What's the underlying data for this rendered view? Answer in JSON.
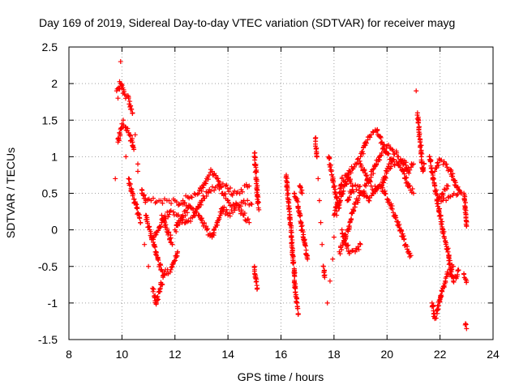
{
  "chart_data": {
    "type": "scatter",
    "title": "Day 169 of 2019, Sidereal Day-to-day VTEC variation (SDTVAR) for receiver mayg",
    "xlabel": "GPS time / hours",
    "ylabel": "SDTVAR / TECUs",
    "xlim": [
      8,
      24
    ],
    "ylim": [
      -1.5,
      2.5
    ],
    "xticks": [
      8,
      10,
      12,
      14,
      16,
      18,
      20,
      22,
      24
    ],
    "yticks": [
      -1.5,
      -1,
      -0.5,
      0,
      0.5,
      1,
      1.5,
      2,
      2.5
    ],
    "grid": true,
    "marker": "+",
    "color": "#ff0000",
    "series": [
      {
        "name": "mayg",
        "tracks": [
          [
            [
              9.75,
              0.7
            ],
            [
              9.85,
              1.8
            ],
            [
              9.95,
              2.3
            ],
            [
              10.05,
              1.5
            ],
            [
              10.15,
              1.0
            ],
            [
              10.25,
              0.7
            ],
            [
              10.4,
              0.5
            ],
            [
              10.55,
              0.3
            ],
            [
              10.7,
              0.1
            ],
            [
              10.85,
              -0.2
            ],
            [
              11.0,
              -0.5
            ],
            [
              11.15,
              -0.8
            ],
            [
              11.3,
              -1.0
            ],
            [
              11.45,
              -0.8
            ],
            [
              11.6,
              -0.6
            ]
          ],
          [
            [
              9.8,
              1.9
            ],
            [
              9.95,
              2.0
            ],
            [
              10.1,
              1.85
            ],
            [
              10.25,
              1.8
            ],
            [
              10.4,
              1.6
            ],
            [
              10.5,
              1.3
            ],
            [
              10.6,
              0.9
            ],
            [
              10.75,
              0.55
            ],
            [
              10.9,
              0.4
            ],
            [
              11.1,
              0.4
            ],
            [
              11.4,
              0.4
            ],
            [
              11.7,
              0.4
            ],
            [
              12.0,
              0.4
            ],
            [
              12.3,
              0.35
            ],
            [
              12.6,
              0.3
            ]
          ],
          [
            [
              9.85,
              1.2
            ],
            [
              10.0,
              1.45
            ],
            [
              10.15,
              1.4
            ],
            [
              10.3,
              1.3
            ],
            [
              10.45,
              1.1
            ],
            [
              10.6,
              0.8
            ],
            [
              10.75,
              0.5
            ],
            [
              10.9,
              0.2
            ],
            [
              11.05,
              0.0
            ],
            [
              11.2,
              -0.2
            ],
            [
              11.35,
              -0.4
            ],
            [
              11.5,
              -0.55
            ],
            [
              11.7,
              -0.6
            ],
            [
              11.9,
              -0.5
            ],
            [
              12.1,
              -0.3
            ]
          ],
          [
            [
              11.5,
              0.2
            ],
            [
              11.7,
              0.0
            ],
            [
              11.9,
              -0.2
            ],
            [
              12.1,
              0.1
            ],
            [
              12.3,
              0.4
            ],
            [
              12.6,
              0.45
            ],
            [
              12.9,
              0.5
            ],
            [
              13.2,
              0.7
            ],
            [
              13.4,
              0.8
            ],
            [
              13.6,
              0.7
            ],
            [
              13.8,
              0.5
            ],
            [
              14.0,
              0.4
            ],
            [
              14.2,
              0.35
            ],
            [
              14.4,
              0.3
            ],
            [
              14.6,
              0.2
            ],
            [
              14.8,
              0.1
            ]
          ],
          [
            [
              11.2,
              -0.1
            ],
            [
              11.5,
              0.1
            ],
            [
              11.8,
              0.25
            ],
            [
              12.1,
              0.2
            ],
            [
              12.4,
              0.1
            ],
            [
              12.7,
              0.2
            ],
            [
              13.0,
              0.4
            ],
            [
              13.3,
              0.55
            ],
            [
              13.6,
              0.6
            ],
            [
              13.9,
              0.6
            ],
            [
              14.2,
              0.5
            ],
            [
              14.5,
              0.55
            ],
            [
              14.8,
              0.6
            ]
          ],
          [
            [
              12.0,
              0.0
            ],
            [
              12.3,
              0.2
            ],
            [
              12.6,
              0.3
            ],
            [
              12.9,
              0.2
            ],
            [
              13.2,
              0.0
            ],
            [
              13.4,
              -0.1
            ],
            [
              13.6,
              0.1
            ],
            [
              13.8,
              0.3
            ],
            [
              14.0,
              0.2
            ],
            [
              14.3,
              0.3
            ],
            [
              14.6,
              0.4
            ],
            [
              14.9,
              0.35
            ]
          ],
          [
            [
              15.0,
              1.05
            ],
            [
              15.05,
              0.8
            ],
            [
              15.1,
              0.55
            ],
            [
              15.15,
              0.3
            ],
            [
              15.0,
              -0.5
            ],
            [
              15.05,
              -0.65
            ],
            [
              15.1,
              -0.8
            ]
          ],
          [
            [
              16.2,
              0.75
            ],
            [
              16.25,
              0.5
            ],
            [
              16.3,
              0.3
            ],
            [
              16.35,
              0.1
            ],
            [
              16.4,
              -0.1
            ],
            [
              16.45,
              -0.35
            ],
            [
              16.5,
              -0.6
            ],
            [
              16.55,
              -0.85
            ],
            [
              16.6,
              -1.0
            ],
            [
              16.65,
              -1.15
            ]
          ],
          [
            [
              16.5,
              0.5
            ],
            [
              16.6,
              0.4
            ],
            [
              16.7,
              0.2
            ],
            [
              16.8,
              0.0
            ],
            [
              16.9,
              -0.2
            ],
            [
              17.0,
              -0.4
            ],
            [
              16.8,
              0.5
            ],
            [
              16.7,
              0.6
            ]
          ],
          [
            [
              17.3,
              1.25
            ],
            [
              17.35,
              1.0
            ],
            [
              17.4,
              0.7
            ],
            [
              17.45,
              0.4
            ],
            [
              17.5,
              0.1
            ],
            [
              17.55,
              -0.2
            ],
            [
              17.6,
              -0.5
            ],
            [
              17.65,
              -0.65
            ]
          ],
          [
            [
              17.75,
              -1.0
            ],
            [
              17.85,
              -0.7
            ],
            [
              17.95,
              -0.4
            ],
            [
              18.0,
              -0.1
            ],
            [
              18.1,
              0.2
            ],
            [
              18.2,
              0.5
            ],
            [
              18.3,
              0.7
            ],
            [
              18.5,
              0.75
            ],
            [
              18.7,
              0.6
            ]
          ],
          [
            [
              17.8,
              1.0
            ],
            [
              17.9,
              0.8
            ],
            [
              18.0,
              0.6
            ],
            [
              18.1,
              0.45
            ],
            [
              18.2,
              0.3
            ],
            [
              18.3,
              0.0
            ],
            [
              18.45,
              -0.2
            ],
            [
              18.6,
              -0.3
            ],
            [
              18.8,
              -0.3
            ],
            [
              19.0,
              -0.2
            ]
          ],
          [
            [
              18.0,
              0.2
            ],
            [
              18.2,
              0.4
            ],
            [
              18.4,
              0.6
            ],
            [
              18.6,
              0.8
            ],
            [
              18.8,
              0.9
            ],
            [
              19.0,
              1.0
            ],
            [
              19.2,
              1.2
            ],
            [
              19.4,
              1.3
            ],
            [
              19.6,
              1.35
            ],
            [
              19.8,
              1.2
            ],
            [
              20.0,
              1.05
            ],
            [
              20.2,
              0.95
            ],
            [
              20.4,
              0.9
            ],
            [
              20.6,
              0.95
            ],
            [
              20.8,
              0.85
            ]
          ],
          [
            [
              18.2,
              -0.3
            ],
            [
              18.4,
              -0.15
            ],
            [
              18.6,
              0.1
            ],
            [
              18.8,
              0.35
            ],
            [
              19.0,
              0.5
            ],
            [
              19.2,
              0.6
            ],
            [
              19.4,
              0.75
            ],
            [
              19.6,
              0.9
            ],
            [
              19.8,
              1.05
            ],
            [
              20.0,
              1.15
            ],
            [
              20.2,
              1.1
            ],
            [
              20.4,
              1.0
            ],
            [
              20.6,
              0.9
            ],
            [
              20.8,
              0.8
            ],
            [
              21.0,
              0.9
            ]
          ],
          [
            [
              18.5,
              0.4
            ],
            [
              18.7,
              0.55
            ],
            [
              18.9,
              0.6
            ],
            [
              19.1,
              0.5
            ],
            [
              19.3,
              0.4
            ],
            [
              19.5,
              0.5
            ],
            [
              19.7,
              0.6
            ],
            [
              19.9,
              0.5
            ],
            [
              20.1,
              0.35
            ],
            [
              20.3,
              0.2
            ],
            [
              20.5,
              0.0
            ],
            [
              20.7,
              -0.2
            ],
            [
              20.9,
              -0.35
            ]
          ],
          [
            [
              19.0,
              0.9
            ],
            [
              19.2,
              0.75
            ],
            [
              19.4,
              0.6
            ],
            [
              19.6,
              0.55
            ],
            [
              19.8,
              0.6
            ],
            [
              20.0,
              0.8
            ],
            [
              20.2,
              0.95
            ],
            [
              20.4,
              0.9
            ],
            [
              20.6,
              0.8
            ],
            [
              20.8,
              0.6
            ],
            [
              21.0,
              0.5
            ]
          ],
          [
            [
              21.1,
              1.9
            ],
            [
              21.15,
              1.6
            ],
            [
              21.2,
              1.4
            ],
            [
              21.25,
              1.2
            ],
            [
              21.3,
              1.0
            ],
            [
              21.35,
              0.8
            ],
            [
              21.4,
              0.9
            ]
          ],
          [
            [
              21.6,
              1.0
            ],
            [
              21.7,
              0.8
            ],
            [
              21.8,
              0.6
            ],
            [
              21.9,
              0.4
            ],
            [
              22.0,
              0.2
            ],
            [
              22.1,
              0.0
            ],
            [
              22.2,
              -0.15
            ],
            [
              22.3,
              -0.3
            ],
            [
              22.4,
              -0.55
            ],
            [
              22.5,
              -0.7
            ],
            [
              22.6,
              -0.65
            ],
            [
              22.7,
              -0.55
            ]
          ],
          [
            [
              21.7,
              -1.0
            ],
            [
              21.8,
              -1.2
            ],
            [
              21.9,
              -1.1
            ],
            [
              22.0,
              -0.95
            ],
            [
              22.1,
              -0.8
            ],
            [
              22.2,
              -0.7
            ],
            [
              22.3,
              -0.6
            ],
            [
              22.4,
              -0.55
            ],
            [
              22.5,
              -0.5
            ]
          ],
          [
            [
              21.8,
              0.8
            ],
            [
              22.0,
              0.95
            ],
            [
              22.2,
              0.9
            ],
            [
              22.4,
              0.8
            ],
            [
              22.6,
              0.6
            ],
            [
              22.8,
              0.5
            ],
            [
              21.9,
              0.4
            ],
            [
              22.1,
              0.5
            ],
            [
              22.3,
              0.6
            ]
          ],
          [
            [
              22.9,
              0.5
            ],
            [
              22.95,
              0.3
            ],
            [
              23.0,
              0.05
            ],
            [
              22.9,
              -0.6
            ],
            [
              23.0,
              -0.7
            ],
            [
              22.95,
              -1.3
            ],
            [
              23.0,
              -1.35
            ]
          ]
        ]
      }
    ]
  }
}
